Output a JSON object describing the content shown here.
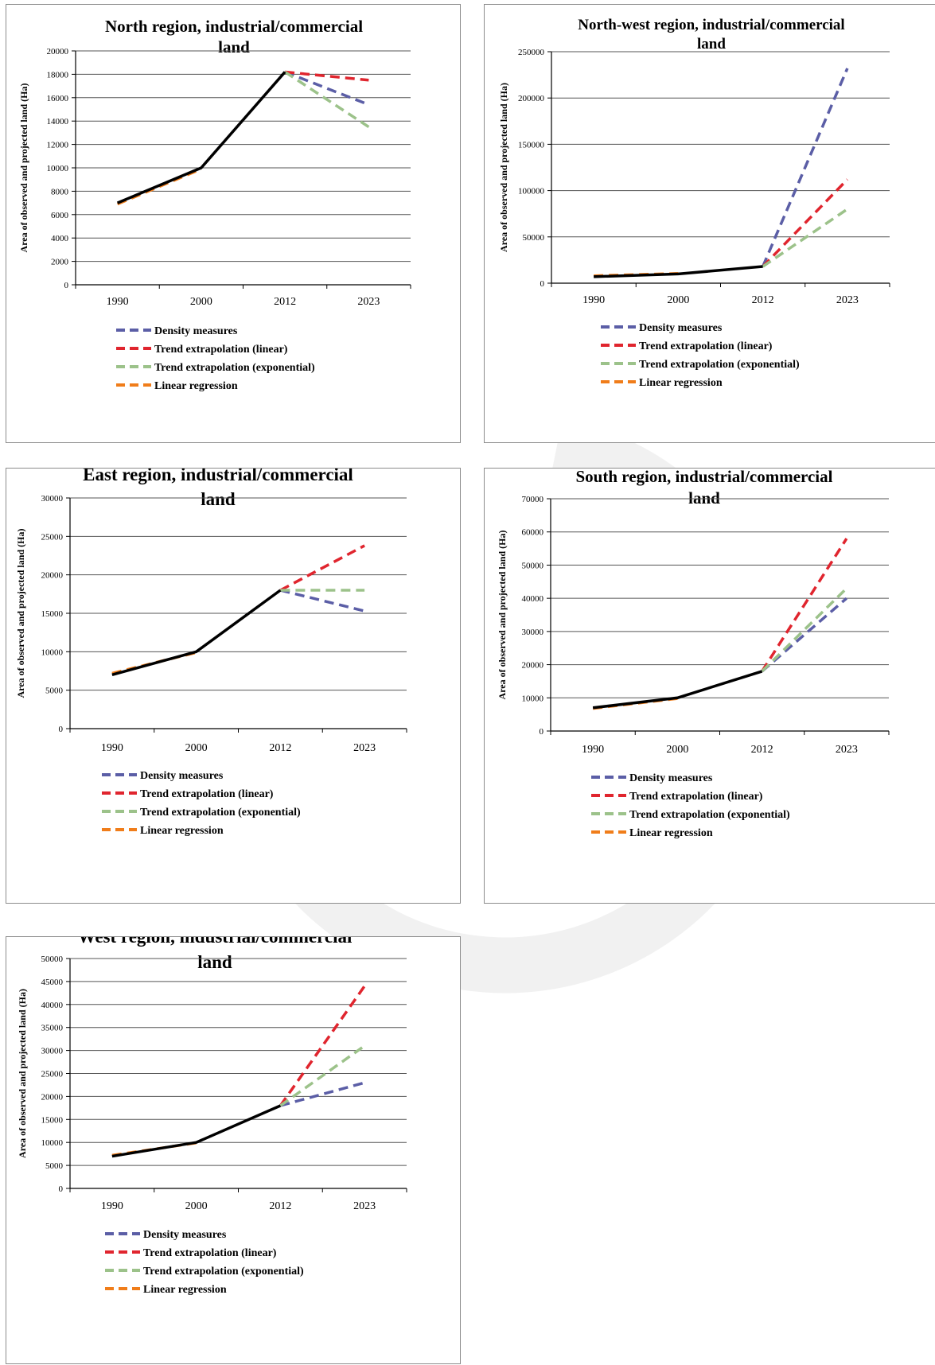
{
  "chart_data": [
    {
      "type": "line",
      "title": "North region, industrial/commercial land",
      "ylabel": "Area of observed and projected land (Ha)",
      "categories": [
        "1990",
        "2000",
        "2012",
        "2023"
      ],
      "ylim": [
        0,
        20000
      ],
      "yticks": [
        0,
        2000,
        4000,
        6000,
        8000,
        10000,
        12000,
        14000,
        16000,
        18000,
        20000
      ],
      "observed": [
        7000,
        10000,
        18200
      ],
      "series": [
        {
          "name": "Density measures",
          "color": "#5b5ea6",
          "values": [
            null,
            null,
            18200,
            15400
          ]
        },
        {
          "name": "Trend extrapolation (linear)",
          "color": "#e0252e",
          "values": [
            null,
            null,
            18200,
            17500
          ]
        },
        {
          "name": "Trend extrapolation (exponential)",
          "color": "#9cc28a",
          "values": [
            null,
            null,
            18200,
            13500
          ]
        },
        {
          "name": "Linear regression",
          "color": "#f07d1a",
          "values": [
            6900,
            9900,
            null,
            null
          ]
        }
      ]
    },
    {
      "type": "line",
      "title": "North-west region, industrial/commercial land",
      "ylabel": "Area of observed and projected land (Ha)",
      "categories": [
        "1990",
        "2000",
        "2012",
        "2023"
      ],
      "ylim": [
        0,
        250000
      ],
      "yticks": [
        0,
        50000,
        100000,
        150000,
        200000,
        250000
      ],
      "observed": [
        7000,
        10000,
        18000
      ],
      "series": [
        {
          "name": "Density measures",
          "color": "#5b5ea6",
          "values": [
            null,
            null,
            18000,
            232000
          ]
        },
        {
          "name": "Trend extrapolation (linear)",
          "color": "#e0252e",
          "values": [
            null,
            null,
            18000,
            112000
          ]
        },
        {
          "name": "Trend extrapolation (exponential)",
          "color": "#9cc28a",
          "values": [
            null,
            null,
            18000,
            80000
          ]
        },
        {
          "name": "Linear regression",
          "color": "#f07d1a",
          "values": [
            8000,
            10500,
            null,
            null
          ]
        }
      ]
    },
    {
      "type": "line",
      "title": "East region, industrial/commercial land",
      "ylabel": "Area of observed and projected land (Ha)",
      "categories": [
        "1990",
        "2000",
        "2012",
        "2023"
      ],
      "ylim": [
        0,
        30000
      ],
      "yticks": [
        0,
        5000,
        10000,
        15000,
        20000,
        25000,
        30000
      ],
      "observed": [
        7000,
        10000,
        18000
      ],
      "series": [
        {
          "name": "Density measures",
          "color": "#5b5ea6",
          "values": [
            null,
            null,
            18000,
            15300
          ]
        },
        {
          "name": "Trend extrapolation (linear)",
          "color": "#e0252e",
          "values": [
            null,
            null,
            18000,
            23800
          ]
        },
        {
          "name": "Trend extrapolation (exponential)",
          "color": "#9cc28a",
          "values": [
            null,
            null,
            18000,
            18000
          ]
        },
        {
          "name": "Linear regression",
          "color": "#f07d1a",
          "values": [
            7200,
            9900,
            null,
            null
          ]
        }
      ]
    },
    {
      "type": "line",
      "title": "South region, industrial/commercial land",
      "ylabel": "Area of observed and projected land (Ha)",
      "categories": [
        "1990",
        "2000",
        "2012",
        "2023"
      ],
      "ylim": [
        0,
        70000
      ],
      "yticks": [
        0,
        10000,
        20000,
        30000,
        40000,
        50000,
        60000,
        70000
      ],
      "observed": [
        7000,
        10000,
        18000
      ],
      "series": [
        {
          "name": "Density measures",
          "color": "#5b5ea6",
          "values": [
            null,
            null,
            18000,
            40000
          ]
        },
        {
          "name": "Trend extrapolation (linear)",
          "color": "#e0252e",
          "values": [
            null,
            null,
            18000,
            58000
          ]
        },
        {
          "name": "Trend extrapolation (exponential)",
          "color": "#9cc28a",
          "values": [
            null,
            null,
            18000,
            43000
          ]
        },
        {
          "name": "Linear regression",
          "color": "#f07d1a",
          "values": [
            6800,
            9800,
            null,
            null
          ]
        }
      ]
    },
    {
      "type": "line",
      "title": "West region, industrial/commercial land",
      "ylabel": "Area of observed and projected land (Ha)",
      "categories": [
        "1990",
        "2000",
        "2012",
        "2023"
      ],
      "ylim": [
        0,
        50000
      ],
      "yticks": [
        0,
        5000,
        10000,
        15000,
        20000,
        25000,
        30000,
        35000,
        40000,
        45000,
        50000
      ],
      "observed": [
        7000,
        10000,
        18000
      ],
      "series": [
        {
          "name": "Density measures",
          "color": "#5b5ea6",
          "values": [
            null,
            null,
            18000,
            23000
          ]
        },
        {
          "name": "Trend extrapolation (linear)",
          "color": "#e0252e",
          "values": [
            null,
            null,
            18000,
            44000
          ]
        },
        {
          "name": "Trend extrapolation (exponential)",
          "color": "#9cc28a",
          "values": [
            null,
            null,
            18000,
            31000
          ]
        },
        {
          "name": "Linear regression",
          "color": "#f07d1a",
          "values": [
            7200,
            9900,
            null,
            null
          ]
        }
      ]
    }
  ]
}
